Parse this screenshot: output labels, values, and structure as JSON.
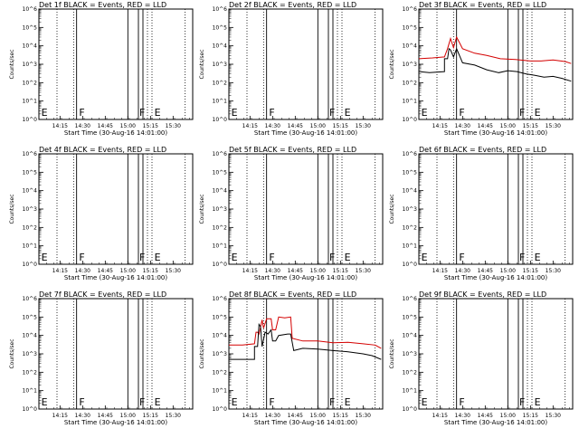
{
  "chart_data": {
    "type": "line",
    "layout": "3x3 grid",
    "ylabel": "Counts/sec",
    "xlabel": "Start Time (30-Aug-16 14:01:00)",
    "x_ticks": [
      "14:15",
      "14:30",
      "14:45",
      "15:00",
      "15:15",
      "15:30"
    ],
    "x_range": [
      "14:01:00",
      "15:43:00"
    ],
    "y_scale": "log",
    "y_ticks": [
      "10^0",
      "10^1",
      "10^2",
      "10^3",
      "10^4",
      "10^5",
      "10^6"
    ],
    "y_range": [
      1,
      1000000
    ],
    "series_colors": {
      "events": "#000000",
      "lld": "#d40000"
    },
    "dotted_lines": [
      "14:13",
      "14:24",
      "15:13",
      "15:16",
      "15:38"
    ],
    "solid_lines": [
      "14:26",
      "15:00",
      "15:07",
      "15:10"
    ],
    "labels": [
      {
        "text": "E",
        "at": "14:02"
      },
      {
        "text": "F",
        "at": "14:27"
      },
      {
        "text": "F",
        "at": "15:07"
      },
      {
        "text": "E",
        "at": "15:17"
      }
    ],
    "panels": [
      {
        "title": "Det 1f BLACK = Events, RED = LLD",
        "has_data": false
      },
      {
        "title": "Det 2f BLACK = Events, RED = LLD",
        "has_data": false
      },
      {
        "title": "Det 3f BLACK = Events, RED = LLD",
        "has_data": true,
        "series": [
          {
            "color": "lld",
            "points": [
              [
                "14:01",
                2000
              ],
              [
                "14:10",
                2200
              ],
              [
                "14:18",
                2500
              ],
              [
                "14:20",
                7000
              ],
              [
                "14:22",
                25000
              ],
              [
                "14:24",
                8000
              ],
              [
                "14:26",
                30000
              ],
              [
                "14:30",
                7000
              ],
              [
                "14:38",
                4000
              ],
              [
                "14:46",
                3000
              ],
              [
                "14:55",
                2000
              ],
              [
                "15:05",
                1800
              ],
              [
                "15:15",
                1500
              ],
              [
                "15:22",
                1500
              ],
              [
                "15:30",
                1700
              ],
              [
                "15:38",
                1400
              ],
              [
                "15:42",
                1100
              ]
            ]
          },
          {
            "color": "events",
            "points": [
              [
                "14:01",
                400
              ],
              [
                "14:08",
                350
              ],
              [
                "14:18",
                400
              ],
              [
                "14:18",
                2000
              ],
              [
                "14:20",
                2000
              ],
              [
                "14:21",
                7000
              ],
              [
                "14:22",
                6000
              ],
              [
                "14:24",
                2500
              ],
              [
                "14:26",
                7000
              ],
              [
                "14:30",
                1200
              ],
              [
                "14:38",
                900
              ],
              [
                "14:46",
                500
              ],
              [
                "14:54",
                350
              ],
              [
                "15:00",
                450
              ],
              [
                "15:06",
                400
              ],
              [
                "15:12",
                300
              ],
              [
                "15:18",
                250
              ],
              [
                "15:24",
                200
              ],
              [
                "15:30",
                220
              ],
              [
                "15:36",
                170
              ],
              [
                "15:42",
                120
              ]
            ]
          }
        ]
      },
      {
        "title": "Det 4f BLACK = Events, RED = LLD",
        "has_data": false
      },
      {
        "title": "Det 5f BLACK = Events, RED = LLD",
        "has_data": false
      },
      {
        "title": "Det 6f BLACK = Events, RED = LLD",
        "has_data": false
      },
      {
        "title": "Det 7f BLACK = Events, RED = LLD",
        "has_data": false
      },
      {
        "title": "Det 8f BLACK = Events, RED = LLD",
        "has_data": true,
        "series": [
          {
            "color": "lld",
            "points": [
              [
                "14:01",
                3000
              ],
              [
                "14:10",
                3000
              ],
              [
                "14:18",
                3500
              ],
              [
                "14:19",
                15000
              ],
              [
                "14:20",
                15000
              ],
              [
                "14:21",
                12000
              ],
              [
                "14:23",
                70000
              ],
              [
                "14:24",
                25000
              ],
              [
                "14:26",
                80000
              ],
              [
                "14:29",
                80000
              ],
              [
                "14:30",
                20000
              ],
              [
                "14:32",
                20000
              ],
              [
                "14:34",
                100000
              ],
              [
                "14:38",
                90000
              ],
              [
                "14:42",
                100000
              ],
              [
                "14:43",
                7000
              ],
              [
                "14:50",
                5000
              ],
              [
                "15:00",
                5000
              ],
              [
                "15:10",
                4000
              ],
              [
                "15:20",
                4200
              ],
              [
                "15:30",
                3500
              ],
              [
                "15:38",
                3000
              ],
              [
                "15:42",
                2000
              ]
            ]
          },
          {
            "color": "events",
            "points": [
              [
                "14:01",
                500
              ],
              [
                "14:10",
                500
              ],
              [
                "14:17",
                500
              ],
              [
                "14:18",
                500
              ],
              [
                "14:18",
                2500
              ],
              [
                "14:20",
                2500
              ],
              [
                "14:21",
                40000
              ],
              [
                "14:22",
                30000
              ],
              [
                "14:23",
                2500
              ],
              [
                "14:25",
                15000
              ],
              [
                "14:27",
                12000
              ],
              [
                "14:29",
                20000
              ],
              [
                "14:30",
                5000
              ],
              [
                "14:32",
                5000
              ],
              [
                "14:34",
                10000
              ],
              [
                "14:40",
                12000
              ],
              [
                "14:42",
                12000
              ],
              [
                "14:44",
                1500
              ],
              [
                "14:50",
                2000
              ],
              [
                "15:00",
                1800
              ],
              [
                "15:10",
                1500
              ],
              [
                "15:20",
                1300
              ],
              [
                "15:30",
                1000
              ],
              [
                "15:36",
                800
              ],
              [
                "15:42",
                500
              ]
            ]
          }
        ]
      },
      {
        "title": "Det 9f BLACK = Events, RED = LLD",
        "has_data": false
      }
    ]
  }
}
